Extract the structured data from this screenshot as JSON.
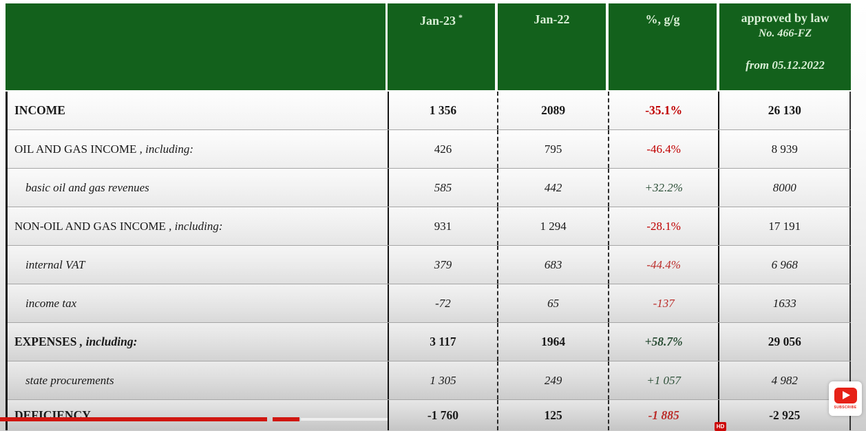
{
  "header": {
    "jan23": {
      "label": "Jan-23",
      "asterisk": "*"
    },
    "jan22": {
      "label": "Jan-22"
    },
    "pct": {
      "label": "%, g/g"
    },
    "approved": {
      "line1": "approved by law",
      "line2": "No. 466-FZ",
      "line3": "from 05.12.2022"
    }
  },
  "rows": [
    {
      "label": "INCOME",
      "suffix": "",
      "jan23": "1 356",
      "jan22": "2089",
      "pct": "-35.1%",
      "approved": "26 130"
    },
    {
      "label": "OIL AND GAS INCOME",
      "suffix": " , including:",
      "jan23": "426",
      "jan22": "795",
      "pct": "-46.4%",
      "approved": "8 939"
    },
    {
      "label": "basic oil and gas revenues",
      "suffix": "",
      "jan23": "585",
      "jan22": "442",
      "pct": "+32.2%",
      "approved": "8000"
    },
    {
      "label": "NON-OIL AND GAS INCOME",
      "suffix": " , including:",
      "jan23": "931",
      "jan22": "1 294",
      "pct": "-28.1%",
      "approved": "17 191"
    },
    {
      "label": "internal VAT",
      "suffix": "",
      "jan23": "379",
      "jan22": "683",
      "pct": "-44.4%",
      "approved": "6 968"
    },
    {
      "label": "income tax",
      "suffix": "",
      "jan23": "-72",
      "jan22": "65",
      "pct": "-137",
      "approved": "1633"
    },
    {
      "label": "EXPENSES",
      "suffix": " , including:",
      "jan23": "3 117",
      "jan22": "1964",
      "pct": "+58.7%",
      "approved": "29 056"
    },
    {
      "label": "state procurements",
      "suffix": "",
      "jan23": "1 305",
      "jan22": "249",
      "pct": "+1 057",
      "approved": "4 982"
    },
    {
      "label": "DEFICIENCY",
      "suffix": "",
      "jan23": "-1 760",
      "jan22": "125",
      "pct": "-1 885",
      "approved": "-2 925"
    }
  ],
  "overlay": {
    "subscribe": "SUBSCRIBE",
    "hd": "HD"
  },
  "colors": {
    "header_green": "#13611c",
    "header_text": "#d9eed6",
    "negative_red": "#c00000",
    "positive_green": "#2c4f37",
    "annotation_red": "#d01610"
  }
}
